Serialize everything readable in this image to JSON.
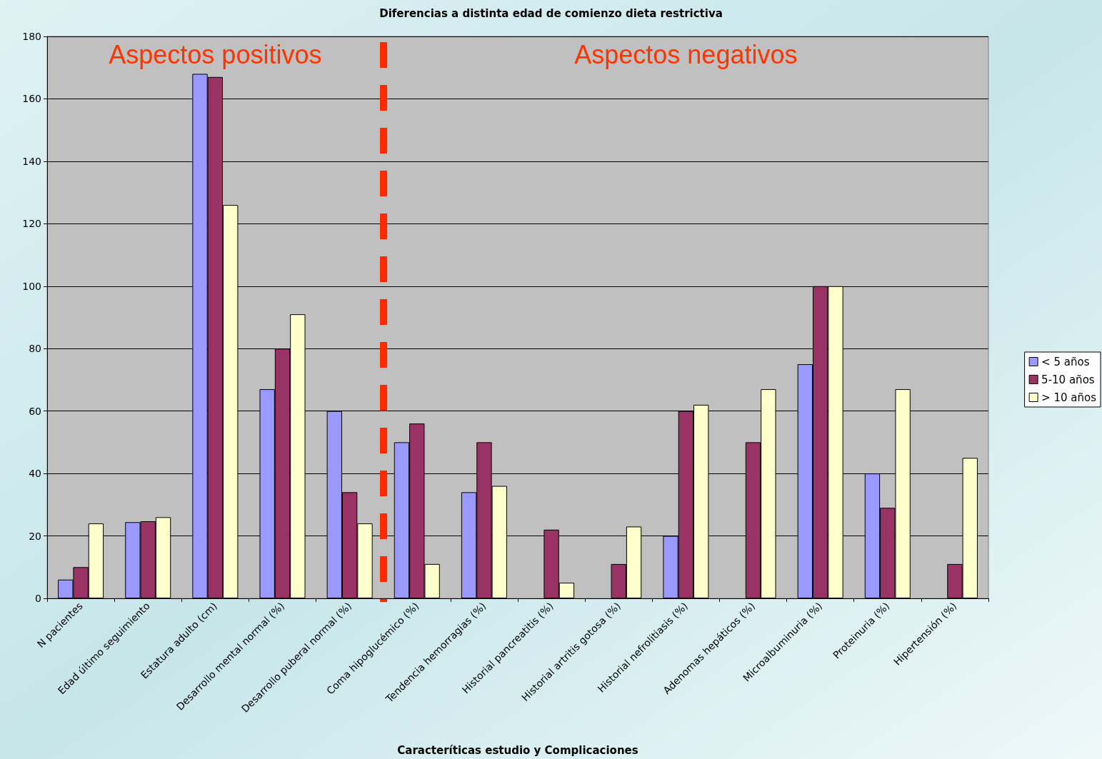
{
  "chart_data": {
    "type": "bar",
    "title": "Diferencias a distinta edad de comienzo dieta restrictiva",
    "xlabel": "Caracteríticas estudio y Complicaciones",
    "categories": [
      "N pacientes",
      "Edad último seguimiento",
      "Estatura adulto (cm)",
      "Desarrollo mental normal (%)",
      "Desarrollo puberal normal (%)",
      "Coma hipoglucémico (%)",
      "Tendencia hemorragias (%)",
      "Historial pancreatitis (%)",
      "Historial artritis gotosa (%)",
      "Historial nefrolitiasis (%)",
      "Adenomas hepáticos (%)",
      "Microalbuminuria (%)",
      "Proteinuria (%)",
      "Hipertensión (%)"
    ],
    "series": [
      {
        "name": "< 5 años",
        "color": "#9999ff",
        "values": [
          6,
          24.4,
          168,
          67,
          60,
          50,
          34,
          null,
          null,
          20,
          null,
          75,
          40,
          null
        ]
      },
      {
        "name": "5-10 años",
        "color": "#993366",
        "values": [
          10,
          24.7,
          167,
          80,
          34,
          56,
          50,
          22,
          11,
          60,
          50,
          100,
          29,
          11
        ]
      },
      {
        "name": "> 10 años",
        "color": "#ffffcc",
        "values": [
          24,
          26,
          126,
          91,
          24,
          11,
          36,
          5,
          23,
          62,
          67,
          100,
          67,
          45
        ]
      }
    ],
    "ylim": [
      0,
      180
    ],
    "yticks": [
      0,
      20,
      40,
      60,
      80,
      100,
      120,
      140,
      160,
      180
    ],
    "grid": "y",
    "legend": "right",
    "annotations": [
      "Aspectos positivos",
      "Aspectos negativos"
    ]
  }
}
